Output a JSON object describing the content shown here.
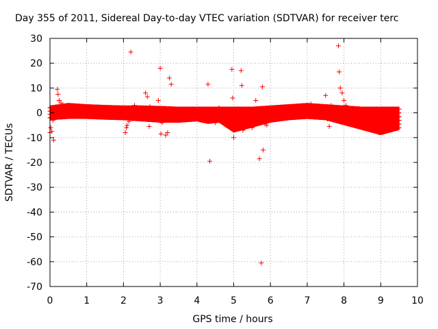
{
  "chart_data": {
    "type": "scatter",
    "title": "Day 355 of 2011, Sidereal Day-to-day VTEC variation (SDTVAR) for receiver terc",
    "xlabel": "GPS time / hours",
    "ylabel": "SDTVAR / TECUs",
    "xlim": [
      0,
      10
    ],
    "ylim": [
      -70,
      30
    ],
    "x_ticks": [
      0,
      1,
      2,
      3,
      4,
      5,
      6,
      7,
      8,
      9,
      10
    ],
    "y_ticks": [
      -70,
      -60,
      -50,
      -40,
      -30,
      -20,
      -10,
      0,
      10,
      20,
      30
    ],
    "x_tick_labels": [
      "0",
      "1",
      "2",
      "3",
      "4",
      "5",
      "6",
      "7",
      "8",
      "9",
      "10"
    ],
    "y_tick_labels": [
      "-70",
      "-60",
      "-50",
      "-40",
      "-30",
      "-20",
      "-10",
      "0",
      "10",
      "20",
      "30"
    ],
    "grid": true,
    "marker": "+",
    "color": "#ff0000",
    "series": [
      {
        "name": "SDTVAR",
        "band": {
          "x": [
            0.0,
            0.5,
            1.0,
            1.5,
            2.0,
            2.5,
            3.0,
            3.5,
            4.0,
            4.3,
            4.6,
            5.0,
            5.5,
            6.0,
            6.5,
            7.0,
            7.5,
            8.0,
            8.5,
            9.0,
            9.5
          ],
          "upper": [
            2.0,
            3.0,
            2.5,
            2.2,
            2.0,
            2.0,
            1.8,
            1.5,
            1.5,
            1.5,
            1.5,
            1.5,
            1.5,
            2.0,
            2.5,
            3.0,
            2.5,
            2.0,
            1.5,
            1.5,
            1.5
          ],
          "lower": [
            -2.0,
            -1.5,
            -1.5,
            -1.8,
            -2.0,
            -2.5,
            -3.0,
            -3.0,
            -2.5,
            -3.5,
            -3.0,
            -7.0,
            -5.0,
            -3.0,
            -2.0,
            -1.5,
            -2.0,
            -4.0,
            -6.0,
            -8.0,
            -6.0
          ],
          "step": 0.01
        },
        "x": [
          0.0,
          0.02,
          0.05,
          0.08,
          0.1,
          0.2,
          0.22,
          0.25,
          0.3,
          0.35,
          0.4,
          0.5,
          2.05,
          2.08,
          2.1,
          2.15,
          2.2,
          2.25,
          2.3,
          2.4,
          2.5,
          2.6,
          2.65,
          2.7,
          2.72,
          2.8,
          2.9,
          2.95,
          3.0,
          3.02,
          3.05,
          3.1,
          3.15,
          3.2,
          3.25,
          3.3,
          3.35,
          4.0,
          4.3,
          4.35,
          4.4,
          4.5,
          4.55,
          4.6,
          4.7,
          4.95,
          4.97,
          5.0,
          5.1,
          5.2,
          5.22,
          5.25,
          5.3,
          5.5,
          5.6,
          5.7,
          5.75,
          5.78,
          5.8,
          5.85,
          5.9,
          6.0,
          6.5,
          7.1,
          7.3,
          7.5,
          7.55,
          7.6,
          7.65,
          7.7,
          7.85,
          7.87,
          7.9,
          7.95,
          8.0,
          8.05,
          8.1,
          8.2,
          8.7,
          8.9,
          8.95,
          9.0,
          9.2,
          9.4,
          9.5
        ],
        "y": [
          -8.0,
          -6.0,
          -7.5,
          -3.0,
          -11.0,
          9.5,
          7.5,
          5.0,
          4.0,
          3.0,
          2.0,
          1.0,
          -8.0,
          -6.0,
          -5.0,
          -3.5,
          24.5,
          -2.5,
          3.0,
          2.0,
          -2.0,
          8.0,
          6.5,
          -5.5,
          2.5,
          1.0,
          1.5,
          5.0,
          18.0,
          -8.5,
          -4.0,
          -3.0,
          -9.0,
          -8.0,
          14.0,
          11.5,
          0.5,
          -1.0,
          11.5,
          -19.5,
          -2.5,
          -4.0,
          -1.5,
          2.0,
          -2.0,
          17.5,
          6.0,
          -10.0,
          -3.0,
          17.0,
          11.0,
          -7.0,
          -4.5,
          -6.0,
          5.0,
          -18.5,
          -60.5,
          10.5,
          -15.0,
          -4.5,
          -5.0,
          -2.5,
          -1.0,
          3.5,
          2.0,
          7.0,
          -2.5,
          -5.5,
          3.0,
          -1.5,
          27.0,
          16.5,
          10.0,
          8.0,
          5.0,
          3.0,
          2.0,
          1.0,
          -3.5,
          -6.5,
          -8.0,
          -4.0,
          -3.5,
          -2.5,
          -3.0
        ]
      }
    ]
  }
}
